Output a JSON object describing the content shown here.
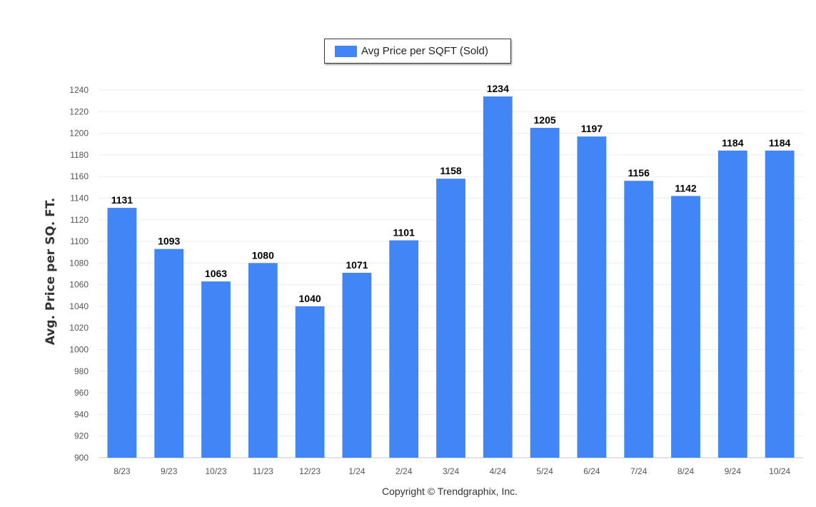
{
  "legend": {
    "label": "Avg Price per SQFT (Sold)"
  },
  "footer": {
    "copyright": "Copyright © Trendgraphix, Inc."
  },
  "chart_data": {
    "type": "bar",
    "title": "",
    "xlabel": "",
    "ylabel": "Avg. Price per SQ. FT.",
    "categories": [
      "8/23",
      "9/23",
      "10/23",
      "11/23",
      "12/23",
      "1/24",
      "2/24",
      "3/24",
      "4/24",
      "5/24",
      "6/24",
      "7/24",
      "8/24",
      "9/24",
      "10/24"
    ],
    "series": [
      {
        "name": "Avg Price per SQFT (Sold)",
        "values": [
          1131,
          1093,
          1063,
          1080,
          1040,
          1071,
          1101,
          1158,
          1234,
          1205,
          1197,
          1156,
          1142,
          1184,
          1184
        ],
        "color": "#4285f4"
      }
    ],
    "ylim": [
      900,
      1240
    ],
    "yticks": [
      900,
      920,
      940,
      960,
      980,
      1000,
      1020,
      1040,
      1060,
      1080,
      1100,
      1120,
      1140,
      1160,
      1180,
      1200,
      1220,
      1240
    ],
    "grid": true,
    "legend_position": "top-center",
    "data_labels": true
  }
}
